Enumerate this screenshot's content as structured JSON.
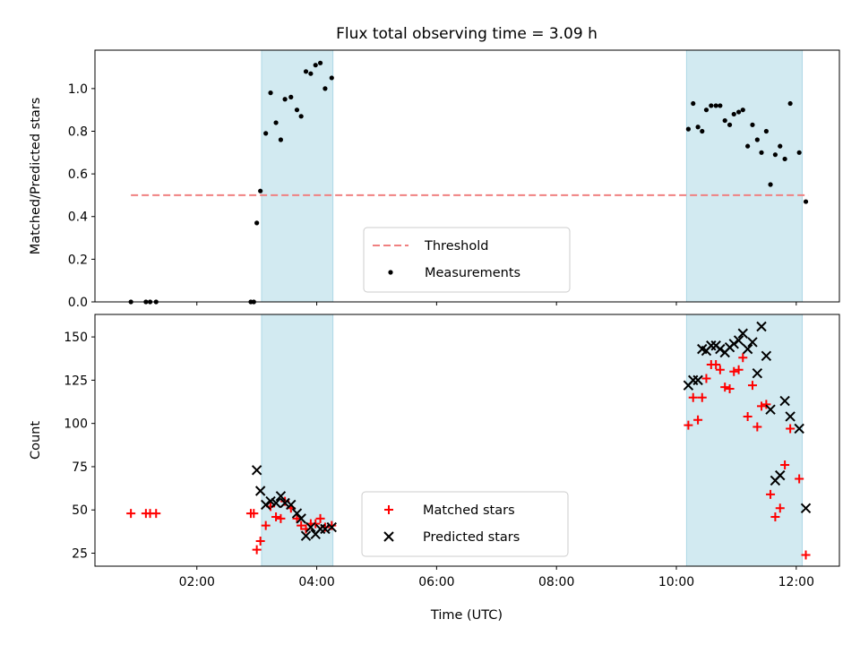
{
  "chart_data": {
    "title": "Flux total observing time = 3.09 h",
    "xlabel": "Time (UTC)",
    "x_unit": "hours (UTC)",
    "xlim": [
      0.3,
      12.72
    ],
    "x_ticks": [
      {
        "value": 2,
        "label": "02:00"
      },
      {
        "value": 4,
        "label": "04:00"
      },
      {
        "value": 6,
        "label": "06:00"
      },
      {
        "value": 8,
        "label": "08:00"
      },
      {
        "value": 10,
        "label": "10:00"
      },
      {
        "value": 12,
        "label": "12:00"
      }
    ],
    "shaded_intervals": [
      [
        3.08,
        4.27
      ],
      [
        10.17,
        12.1
      ]
    ],
    "colors": {
      "shade": "#add8e6",
      "threshold": "#f08080",
      "measurements": "#000000",
      "matched": "#ff0000",
      "predicted": "#000000"
    },
    "panels": [
      {
        "type": "scatter",
        "ylabel": "Matched/Predicted stars",
        "ylim": [
          0,
          1.18
        ],
        "y_ticks": [
          {
            "value": 0,
            "label": "0.0"
          },
          {
            "value": 0.2,
            "label": "0.2"
          },
          {
            "value": 0.4,
            "label": "0.4"
          },
          {
            "value": 0.6,
            "label": "0.6"
          },
          {
            "value": 0.8,
            "label": "0.8"
          },
          {
            "value": 1.0,
            "label": "1.0"
          }
        ],
        "legend_position": "lower-center",
        "threshold": {
          "name": "Threshold",
          "value": 0.5,
          "x_range": [
            0.9,
            12.2
          ]
        },
        "series": [
          {
            "name": "Measurements",
            "marker": "dot",
            "points": [
              [
                0.9,
                0.0
              ],
              [
                1.15,
                0.0
              ],
              [
                1.22,
                0.0
              ],
              [
                1.32,
                0.0
              ],
              [
                2.9,
                0.0
              ],
              [
                2.95,
                0.0
              ],
              [
                3.0,
                0.37
              ],
              [
                3.06,
                0.52
              ],
              [
                3.15,
                0.79
              ],
              [
                3.23,
                0.98
              ],
              [
                3.32,
                0.84
              ],
              [
                3.4,
                0.76
              ],
              [
                3.47,
                0.95
              ],
              [
                3.57,
                0.96
              ],
              [
                3.67,
                0.9
              ],
              [
                3.74,
                0.87
              ],
              [
                3.82,
                1.08
              ],
              [
                3.9,
                1.07
              ],
              [
                3.98,
                1.11
              ],
              [
                4.06,
                1.12
              ],
              [
                4.14,
                1.0
              ],
              [
                4.25,
                1.05
              ],
              [
                10.2,
                0.81
              ],
              [
                10.28,
                0.93
              ],
              [
                10.36,
                0.82
              ],
              [
                10.43,
                0.8
              ],
              [
                10.5,
                0.9
              ],
              [
                10.58,
                0.92
              ],
              [
                10.66,
                0.92
              ],
              [
                10.73,
                0.92
              ],
              [
                10.81,
                0.85
              ],
              [
                10.89,
                0.83
              ],
              [
                10.96,
                0.88
              ],
              [
                11.04,
                0.89
              ],
              [
                11.11,
                0.9
              ],
              [
                11.19,
                0.73
              ],
              [
                11.27,
                0.83
              ],
              [
                11.35,
                0.76
              ],
              [
                11.42,
                0.7
              ],
              [
                11.5,
                0.8
              ],
              [
                11.57,
                0.55
              ],
              [
                11.65,
                0.69
              ],
              [
                11.73,
                0.73
              ],
              [
                11.81,
                0.67
              ],
              [
                11.9,
                0.93
              ],
              [
                12.05,
                0.7
              ],
              [
                12.16,
                0.47
              ]
            ]
          }
        ]
      },
      {
        "type": "scatter",
        "ylabel": "Count",
        "ylim": [
          17.5,
          163
        ],
        "y_ticks": [
          {
            "value": 25,
            "label": "25"
          },
          {
            "value": 50,
            "label": "50"
          },
          {
            "value": 75,
            "label": "75"
          },
          {
            "value": 100,
            "label": "100"
          },
          {
            "value": 125,
            "label": "125"
          },
          {
            "value": 150,
            "label": "150"
          }
        ],
        "legend_position": "lower-center",
        "series": [
          {
            "name": "Matched stars",
            "marker": "plus",
            "points": [
              [
                0.9,
                48
              ],
              [
                1.15,
                48
              ],
              [
                1.22,
                48
              ],
              [
                1.32,
                48
              ],
              [
                2.9,
                48
              ],
              [
                2.95,
                48
              ],
              [
                3.0,
                27
              ],
              [
                3.06,
                32
              ],
              [
                3.15,
                41
              ],
              [
                3.23,
                52
              ],
              [
                3.32,
                46
              ],
              [
                3.4,
                45
              ],
              [
                3.47,
                55
              ],
              [
                3.57,
                51
              ],
              [
                3.67,
                45
              ],
              [
                3.74,
                41
              ],
              [
                3.82,
                39
              ],
              [
                3.9,
                42
              ],
              [
                3.98,
                42
              ],
              [
                4.06,
                45
              ],
              [
                4.14,
                40
              ],
              [
                4.25,
                41
              ],
              [
                10.2,
                99
              ],
              [
                10.28,
                115
              ],
              [
                10.36,
                102
              ],
              [
                10.43,
                115
              ],
              [
                10.5,
                126
              ],
              [
                10.58,
                134
              ],
              [
                10.66,
                134
              ],
              [
                10.73,
                131
              ],
              [
                10.81,
                121
              ],
              [
                10.89,
                120
              ],
              [
                10.96,
                130
              ],
              [
                11.04,
                131
              ],
              [
                11.11,
                138
              ],
              [
                11.19,
                104
              ],
              [
                11.27,
                122
              ],
              [
                11.35,
                98
              ],
              [
                11.42,
                110
              ],
              [
                11.5,
                111
              ],
              [
                11.57,
                59
              ],
              [
                11.65,
                46
              ],
              [
                11.73,
                51
              ],
              [
                11.81,
                76
              ],
              [
                11.9,
                97
              ],
              [
                12.05,
                68
              ],
              [
                12.16,
                24
              ]
            ]
          },
          {
            "name": "Predicted stars",
            "marker": "x",
            "points": [
              [
                3.0,
                73
              ],
              [
                3.06,
                61
              ],
              [
                3.15,
                53
              ],
              [
                3.23,
                55
              ],
              [
                3.32,
                54
              ],
              [
                3.4,
                58
              ],
              [
                3.47,
                54
              ],
              [
                3.57,
                53
              ],
              [
                3.67,
                48
              ],
              [
                3.74,
                45
              ],
              [
                3.82,
                35
              ],
              [
                3.9,
                40
              ],
              [
                3.98,
                36
              ],
              [
                4.06,
                39
              ],
              [
                4.14,
                39
              ],
              [
                4.25,
                40
              ],
              [
                10.2,
                122
              ],
              [
                10.28,
                125
              ],
              [
                10.36,
                125
              ],
              [
                10.43,
                143
              ],
              [
                10.5,
                142
              ],
              [
                10.58,
                145
              ],
              [
                10.66,
                145
              ],
              [
                10.73,
                143
              ],
              [
                10.81,
                141
              ],
              [
                10.89,
                144
              ],
              [
                10.96,
                146
              ],
              [
                11.04,
                148
              ],
              [
                11.11,
                152
              ],
              [
                11.19,
                143
              ],
              [
                11.27,
                147
              ],
              [
                11.35,
                129
              ],
              [
                11.42,
                156
              ],
              [
                11.5,
                139
              ],
              [
                11.57,
                108
              ],
              [
                11.65,
                67
              ],
              [
                11.73,
                70
              ],
              [
                11.81,
                113
              ],
              [
                11.9,
                104
              ],
              [
                12.05,
                97
              ],
              [
                12.16,
                51
              ]
            ]
          }
        ]
      }
    ]
  }
}
